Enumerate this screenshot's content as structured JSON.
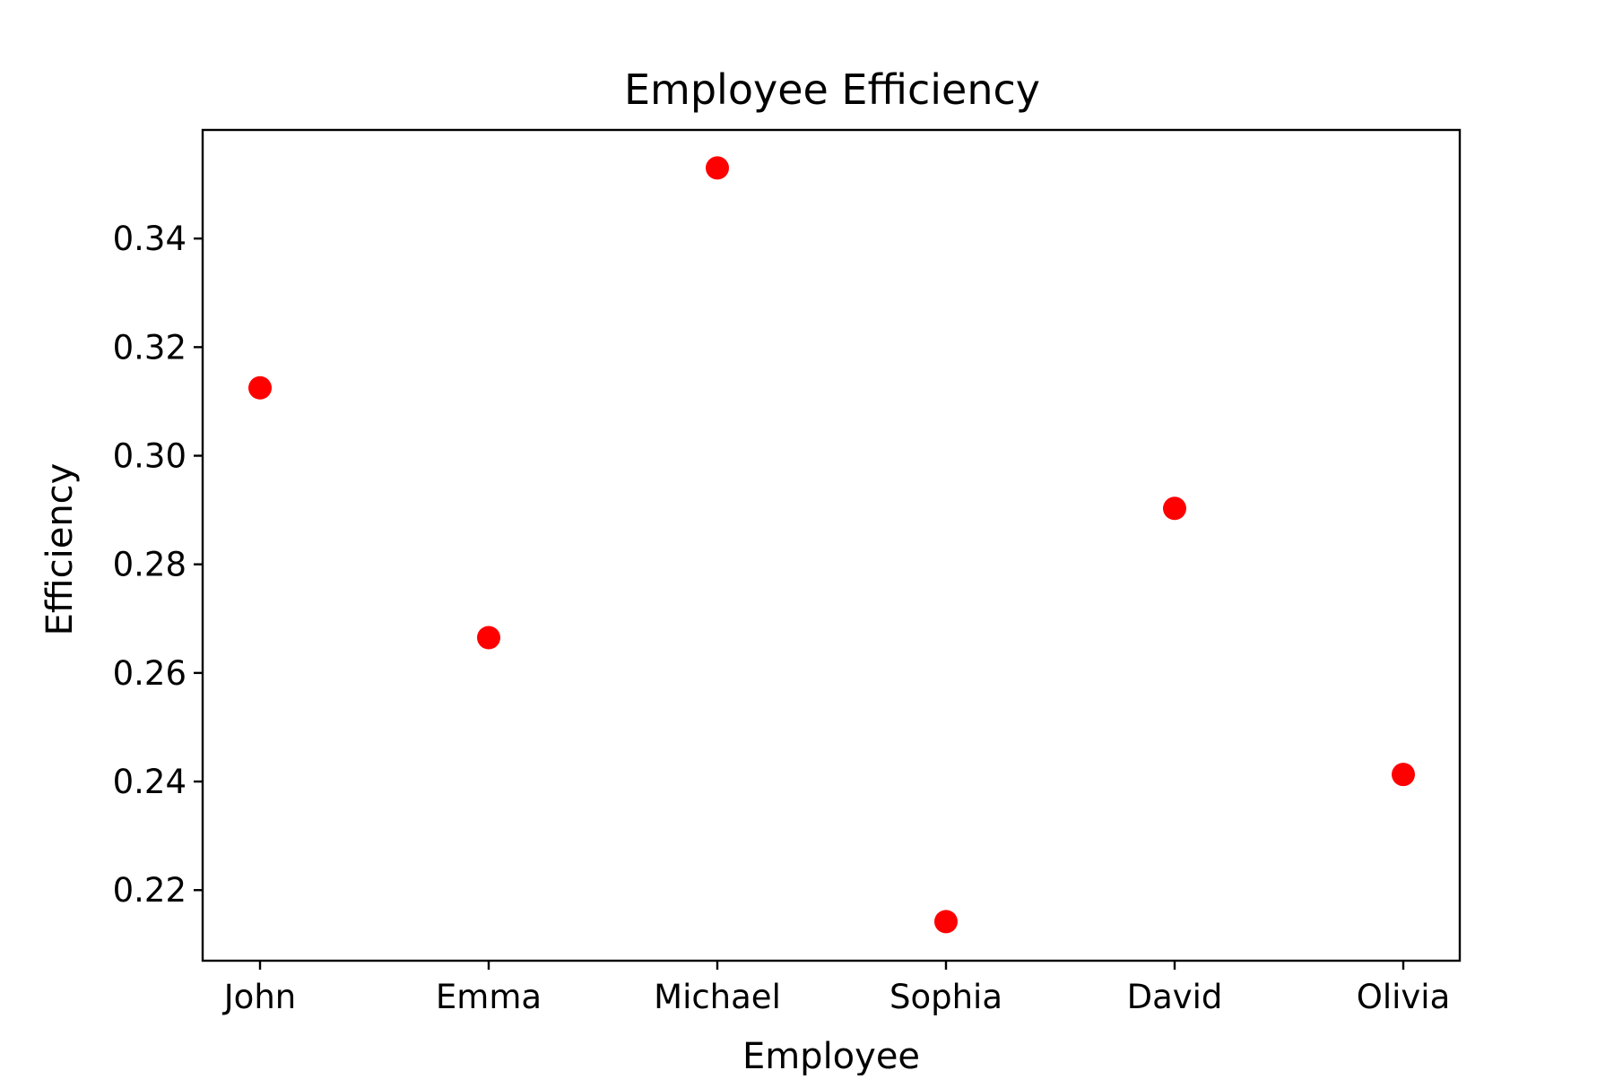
{
  "chart_data": {
    "type": "scatter",
    "title": "Employee Efficiency",
    "xlabel": "Employee",
    "ylabel": "Efficiency",
    "categories": [
      "John",
      "Emma",
      "Michael",
      "Sophia",
      "David",
      "Olivia"
    ],
    "values": [
      0.3125,
      0.2665,
      0.353,
      0.2142,
      0.2903,
      0.2413
    ],
    "yticks": [
      "0.22",
      "0.24",
      "0.26",
      "0.28",
      "0.30",
      "0.32",
      "0.34"
    ],
    "ylim": [
      0.207,
      0.36
    ],
    "grid": false,
    "marker_color": "#ff0000",
    "axis_color": "#000000"
  }
}
